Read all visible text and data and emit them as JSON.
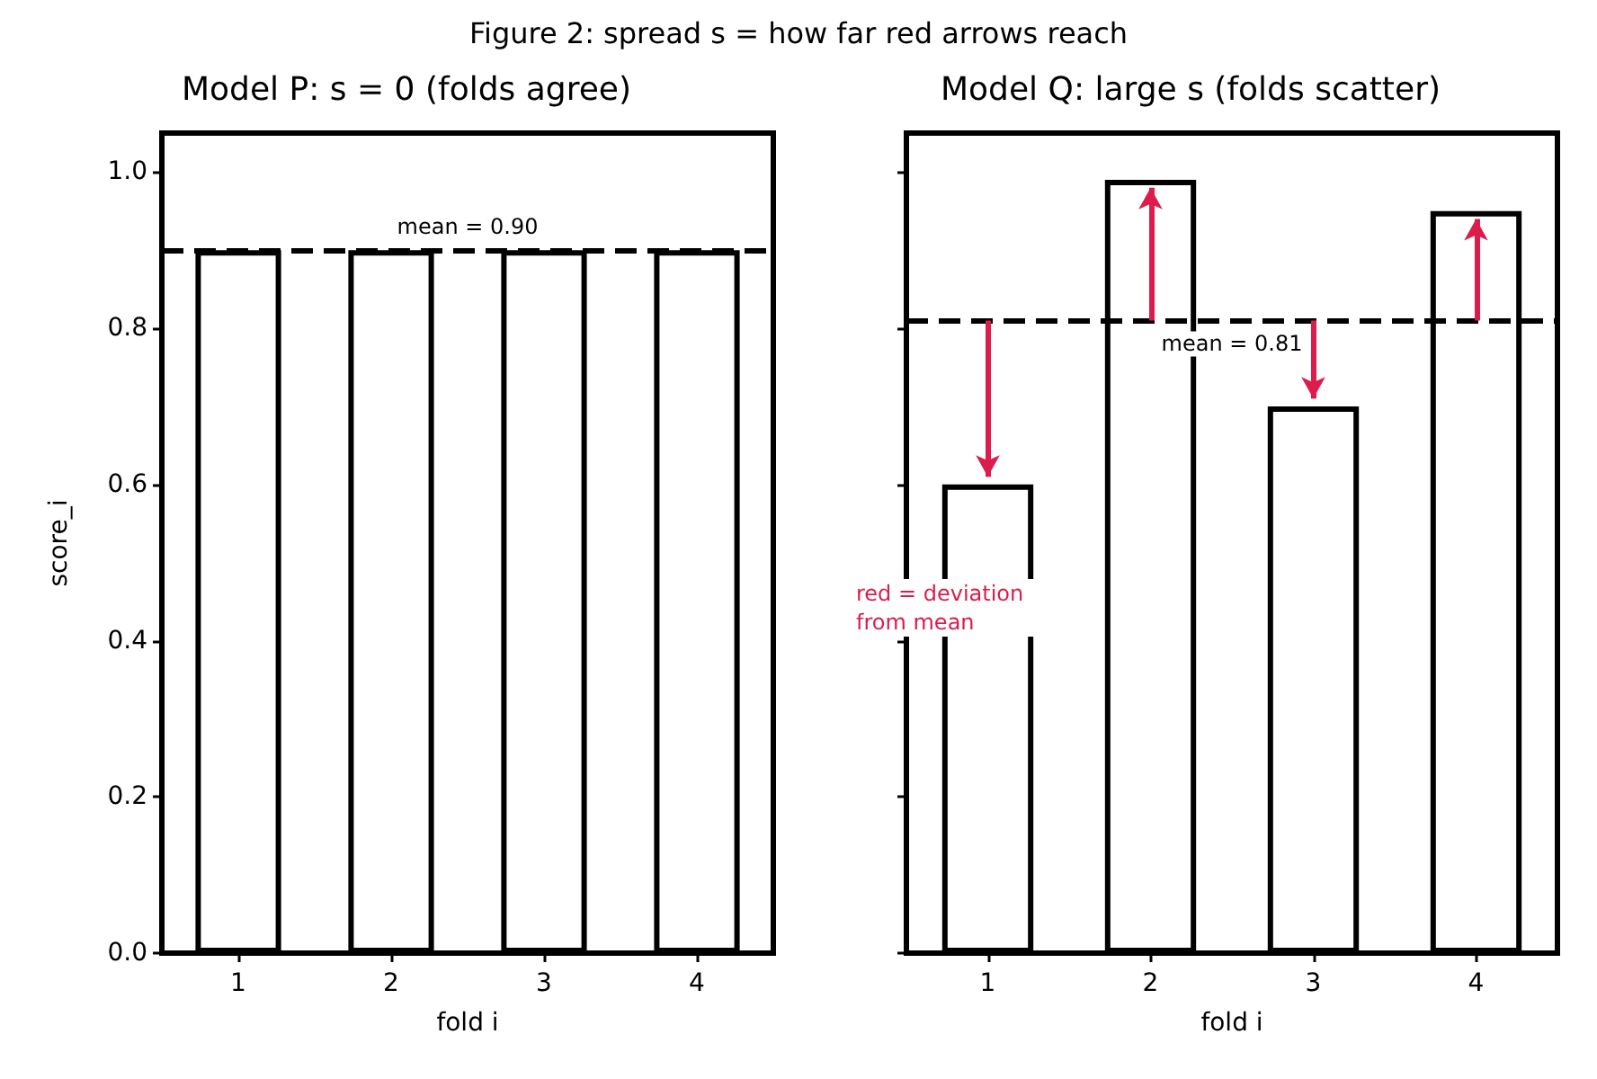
{
  "chart_data": [
    {
      "type": "bar",
      "title": "Model P: s = 0 (folds agree)",
      "xlabel": "fold i",
      "ylabel": "score_i",
      "categories": [
        "1",
        "2",
        "3",
        "4"
      ],
      "values": [
        0.9,
        0.9,
        0.9,
        0.9
      ],
      "color": "#ffffff",
      "ylim": [
        0,
        1.05
      ],
      "yticks": [
        {
          "value": 0,
          "label": "0.0"
        },
        {
          "value": 0.2,
          "label": "0.2"
        },
        {
          "value": 0.4,
          "label": "0.4"
        },
        {
          "value": 0.6,
          "label": "0.6"
        },
        {
          "value": 0.8,
          "label": "0.8"
        },
        {
          "value": 1,
          "label": "1.0"
        }
      ],
      "grid": false,
      "ref_lines": [
        {
          "axis": "y",
          "value": 0.9,
          "label": "mean = 0.90",
          "line_style": "dashed"
        }
      ],
      "annotations": [
        "Figure 2: spread s = how far red arrows reach"
      ]
    },
    {
      "type": "bar",
      "title": "Model Q: large s (folds scatter)",
      "xlabel": "fold i",
      "categories": [
        "1",
        "2",
        "3",
        "4"
      ],
      "values": [
        0.6,
        0.99,
        0.7,
        0.95
      ],
      "color": "#ffffff",
      "ylim": [
        0,
        1.05
      ],
      "yticks": [
        0,
        0.2,
        0.4,
        0.6,
        0.8,
        1
      ],
      "grid": false,
      "tick_labels": "x",
      "ref_lines": [
        {
          "axis": "y",
          "value": 0.81,
          "label": "mean = 0.81",
          "line_style": "dashed"
        }
      ],
      "annotations": [
        "red = deviation from mean"
      ]
    }
  ]
}
